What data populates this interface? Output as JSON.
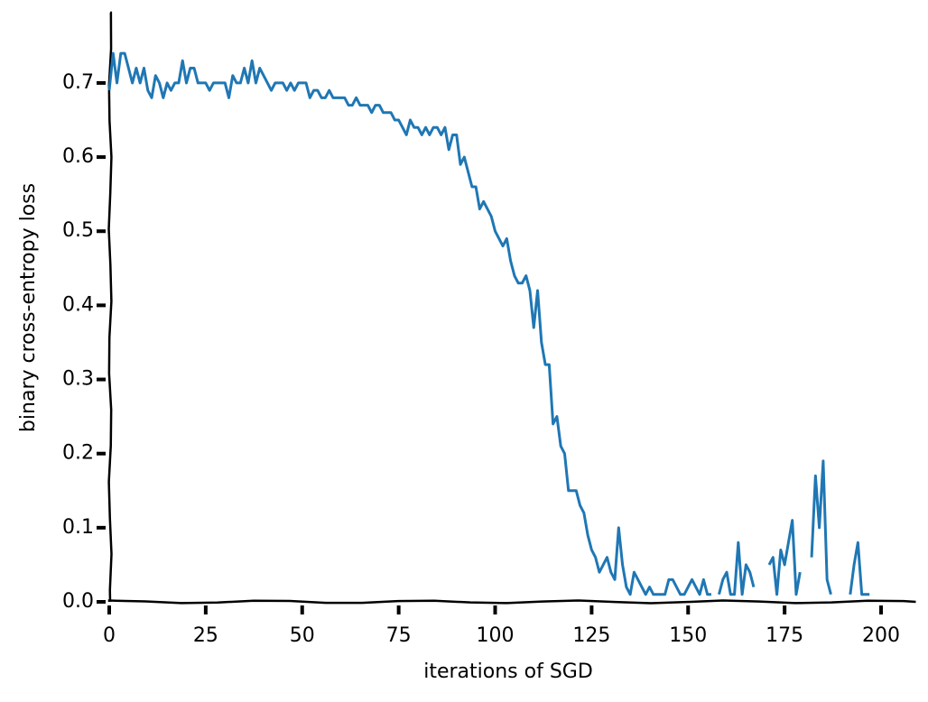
{
  "chart_data": {
    "type": "line",
    "xlabel": "iterations of SGD",
    "ylabel": "binary cross-entropy loss",
    "x": [
      0,
      1,
      2,
      3,
      4,
      5,
      6,
      7,
      8,
      9,
      10,
      11,
      12,
      13,
      14,
      15,
      16,
      17,
      18,
      19,
      20,
      21,
      22,
      23,
      24,
      25,
      26,
      27,
      28,
      29,
      30,
      31,
      32,
      33,
      34,
      35,
      36,
      37,
      38,
      39,
      40,
      41,
      42,
      43,
      44,
      45,
      46,
      47,
      48,
      49,
      50,
      51,
      52,
      53,
      54,
      55,
      56,
      57,
      58,
      59,
      60,
      61,
      62,
      63,
      64,
      65,
      66,
      67,
      68,
      69,
      70,
      71,
      72,
      73,
      74,
      75,
      76,
      77,
      78,
      79,
      80,
      81,
      82,
      83,
      84,
      85,
      86,
      87,
      88,
      89,
      90,
      91,
      92,
      93,
      94,
      95,
      96,
      97,
      98,
      99,
      100,
      101,
      102,
      103,
      104,
      105,
      106,
      107,
      108,
      109,
      110,
      111,
      112,
      113,
      114,
      115,
      116,
      117,
      118,
      119,
      120,
      121,
      122,
      123,
      124,
      125,
      126,
      127,
      128,
      129,
      130,
      131,
      132,
      133,
      134,
      135,
      136,
      137,
      138,
      139,
      140,
      141,
      142,
      143,
      144,
      145,
      146,
      147,
      148,
      149,
      150,
      151,
      152,
      153,
      154,
      155,
      156,
      157,
      158,
      159,
      160,
      161,
      162,
      163,
      164,
      165,
      166,
      167,
      168,
      169,
      170,
      171,
      172,
      173,
      174,
      175,
      176,
      177,
      178,
      179,
      180,
      181,
      182,
      183,
      184,
      185,
      186,
      187,
      188,
      189,
      190,
      191,
      192,
      193,
      194,
      195,
      196,
      197
    ],
    "series": [
      {
        "color": "#1f77b4",
        "values": [
          0.69,
          0.74,
          0.7,
          0.74,
          0.74,
          0.72,
          0.7,
          0.72,
          0.7,
          0.72,
          0.69,
          0.68,
          0.71,
          0.7,
          0.68,
          0.7,
          0.69,
          0.7,
          0.7,
          0.73,
          0.7,
          0.72,
          0.72,
          0.7,
          0.7,
          0.7,
          0.69,
          0.7,
          0.7,
          0.7,
          0.7,
          0.68,
          0.71,
          0.7,
          0.7,
          0.72,
          0.7,
          0.73,
          0.7,
          0.72,
          0.71,
          0.7,
          0.69,
          0.7,
          0.7,
          0.7,
          0.69,
          0.7,
          0.69,
          0.7,
          0.7,
          0.7,
          0.68,
          0.69,
          0.69,
          0.68,
          0.68,
          0.69,
          0.68,
          0.68,
          0.68,
          0.68,
          0.67,
          0.67,
          0.68,
          0.67,
          0.67,
          0.67,
          0.66,
          0.67,
          0.67,
          0.66,
          0.66,
          0.66,
          0.65,
          0.65,
          0.64,
          0.63,
          0.65,
          0.64,
          0.64,
          0.63,
          0.64,
          0.63,
          0.64,
          0.64,
          0.63,
          0.64,
          0.61,
          0.63,
          0.63,
          0.59,
          0.6,
          0.58,
          0.56,
          0.56,
          0.53,
          0.54,
          0.53,
          0.52,
          0.5,
          0.49,
          0.48,
          0.49,
          0.46,
          0.44,
          0.43,
          0.43,
          0.44,
          0.42,
          0.37,
          0.42,
          0.35,
          0.32,
          0.32,
          0.24,
          0.25,
          0.21,
          0.2,
          0.15,
          0.15,
          0.15,
          0.13,
          0.12,
          0.09,
          0.07,
          0.06,
          0.04,
          0.05,
          0.06,
          0.04,
          0.03,
          0.1,
          0.05,
          0.02,
          0.01,
          0.04,
          0.03,
          0.02,
          0.01,
          0.02,
          0.01,
          0.01,
          0.01,
          0.01,
          0.03,
          0.03,
          0.02,
          0.01,
          0.01,
          0.02,
          0.03,
          0.02,
          0.01,
          0.03,
          0.01,
          0.01,
          null,
          0.01,
          0.03,
          0.04,
          0.01,
          0.01,
          0.08,
          0.01,
          0.05,
          0.04,
          0.02,
          null,
          null,
          null,
          0.05,
          0.06,
          0.01,
          0.07,
          0.05,
          0.08,
          0.11,
          0.01,
          0.04,
          null,
          null,
          0.06,
          0.17,
          0.1,
          0.19,
          0.03,
          0.01,
          null,
          null,
          null,
          null,
          0.01,
          0.05,
          0.08,
          0.01,
          0.01,
          0.01
        ]
      }
    ],
    "xlim": [
      0,
      209
    ],
    "ylim": [
      0,
      0.79
    ],
    "xticks": [
      0,
      25,
      50,
      75,
      100,
      125,
      150,
      175,
      200
    ],
    "yticks": [
      {
        "value": 0,
        "label": "0.0"
      },
      0.1,
      0.2,
      0.3,
      0.4,
      0.5,
      0.6,
      0.7
    ]
  }
}
